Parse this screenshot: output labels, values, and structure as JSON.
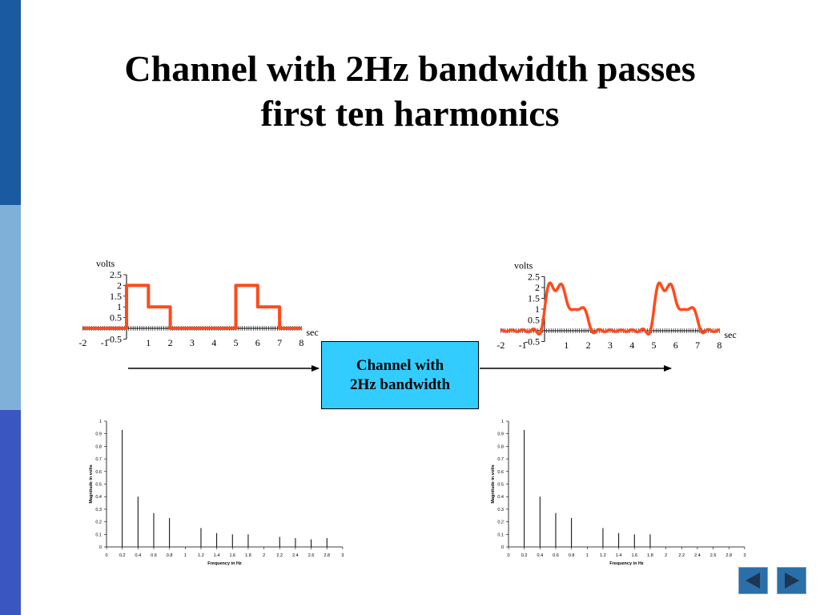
{
  "slide": {
    "title_line1": "Channel with 2Hz bandwidth passes",
    "title_line2": "first ten harmonics",
    "sidebar_colors": [
      "#1a5aa0",
      "#7fb0d8",
      "#3a56c0"
    ]
  },
  "channel_box": {
    "line1": "Channel with",
    "line2": "2Hz bandwidth",
    "fill": "#33ccff"
  },
  "wave_color": "#ff4a1c",
  "nav": {
    "prev_icon": "triangle-left-icon",
    "next_icon": "triangle-right-icon",
    "color": "#2a6fa8"
  },
  "chart_data": [
    {
      "id": "input-signal",
      "type": "line",
      "ylabel": "volts",
      "xlabel": "sec",
      "x_ticks": [
        "-2",
        "-1",
        "1",
        "2",
        "3",
        "4",
        "5",
        "6",
        "7",
        "8"
      ],
      "y_ticks": [
        "2.5",
        "2",
        "1.5",
        "1",
        "0.5",
        "-0.5"
      ],
      "xlim": [
        -2,
        8
      ],
      "ylim": [
        -0.5,
        2.5
      ],
      "x": [
        -2,
        0,
        0,
        1,
        1,
        2,
        2,
        5,
        5,
        6,
        6,
        7,
        7,
        8
      ],
      "y": [
        0,
        0,
        2,
        2,
        1,
        1,
        0,
        0,
        2,
        2,
        1,
        1,
        0,
        0
      ]
    },
    {
      "id": "output-signal",
      "type": "line",
      "ylabel": "volts",
      "xlabel": "sec",
      "x_ticks": [
        "-2",
        "-1",
        "1",
        "2",
        "3",
        "4",
        "5",
        "6",
        "7",
        "8"
      ],
      "y_ticks": [
        "2.5",
        "2",
        "1.5",
        "1",
        "0.5",
        "-0.5"
      ],
      "xlim": [
        -2,
        8
      ],
      "ylim": [
        -0.5,
        2.5
      ],
      "harmonics_shown": 10
    },
    {
      "id": "input-spectrum",
      "type": "bar",
      "xlabel": "Frequency in Hz",
      "ylabel": "Magnitude in volts",
      "x_ticks": [
        "0",
        "0.2",
        "0.4",
        "0.6",
        "0.8",
        "1",
        "1.2",
        "1.4",
        "1.6",
        "1.8",
        "2",
        "2.2",
        "2.4",
        "2.6",
        "2.8",
        "3"
      ],
      "y_ticks": [
        "0",
        "0.1",
        "0.2",
        "0.3",
        "0.4",
        "0.5",
        "0.6",
        "0.7",
        "0.8",
        "0.9",
        "1"
      ],
      "xlim": [
        0,
        3
      ],
      "ylim": [
        0,
        1
      ],
      "x": [
        0.2,
        0.4,
        0.6,
        0.8,
        1.2,
        1.4,
        1.6,
        1.8,
        2.2,
        2.4,
        2.6,
        2.8
      ],
      "values": [
        0.93,
        0.4,
        0.27,
        0.23,
        0.15,
        0.11,
        0.1,
        0.1,
        0.08,
        0.07,
        0.06,
        0.07
      ]
    },
    {
      "id": "output-spectrum",
      "type": "bar",
      "xlabel": "Frequency in Hz",
      "ylabel": "Magnitude in volts",
      "x_ticks": [
        "0",
        "0.2",
        "0.4",
        "0.6",
        "0.8",
        "1",
        "1.2",
        "1.4",
        "1.6",
        "1.8",
        "2",
        "2.2",
        "2.4",
        "2.6",
        "2.8",
        "3"
      ],
      "y_ticks": [
        "0",
        "0.1",
        "0.2",
        "0.3",
        "0.4",
        "0.5",
        "0.6",
        "0.7",
        "0.8",
        "0.9",
        "1"
      ],
      "xlim": [
        0,
        3
      ],
      "ylim": [
        0,
        1
      ],
      "x": [
        0.2,
        0.4,
        0.6,
        0.8,
        1.2,
        1.4,
        1.6,
        1.8
      ],
      "values": [
        0.93,
        0.4,
        0.27,
        0.23,
        0.15,
        0.11,
        0.1,
        0.1
      ]
    }
  ]
}
